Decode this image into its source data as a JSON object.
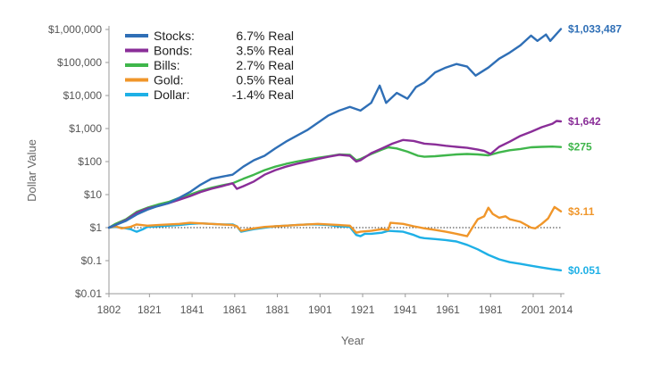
{
  "chart_data": {
    "type": "line",
    "title": "",
    "xlabel": "Year",
    "ylabel": "Dollar Value",
    "y_scale": "log",
    "ylim": [
      0.01,
      1000000
    ],
    "xlim": [
      1802,
      2014
    ],
    "grid": false,
    "reference_line": {
      "value": 1,
      "style": "dotted"
    },
    "legend_position": "top-left",
    "x_ticks": [
      1802,
      1821,
      1841,
      1861,
      1881,
      1901,
      1921,
      1941,
      1961,
      1981,
      2001,
      2014
    ],
    "y_ticks": [
      {
        "value": 1000000,
        "label": "$1,000,000"
      },
      {
        "value": 100000,
        "label": "$100,000"
      },
      {
        "value": 10000,
        "label": "$10,000"
      },
      {
        "value": 1000,
        "label": "$1,000"
      },
      {
        "value": 100,
        "label": "$100"
      },
      {
        "value": 10,
        "label": "$10"
      },
      {
        "value": 1,
        "label": "$1"
      },
      {
        "value": 0.1,
        "label": "$0.1"
      },
      {
        "value": 0.01,
        "label": "$0.01"
      }
    ],
    "series": [
      {
        "name": "Stocks:",
        "rate": "6.7% Real",
        "color": "#2f6fb6",
        "end_label": "$1,033,487",
        "points": [
          [
            1802,
            1
          ],
          [
            1805,
            1.2
          ],
          [
            1810,
            1.6
          ],
          [
            1815,
            2.5
          ],
          [
            1820,
            3.5
          ],
          [
            1825,
            4.5
          ],
          [
            1830,
            5.5
          ],
          [
            1835,
            8
          ],
          [
            1840,
            12
          ],
          [
            1845,
            20
          ],
          [
            1850,
            30
          ],
          [
            1855,
            35
          ],
          [
            1860,
            40
          ],
          [
            1865,
            70
          ],
          [
            1870,
            110
          ],
          [
            1875,
            150
          ],
          [
            1880,
            250
          ],
          [
            1885,
            400
          ],
          [
            1890,
            600
          ],
          [
            1895,
            900
          ],
          [
            1900,
            1500
          ],
          [
            1905,
            2500
          ],
          [
            1910,
            3500
          ],
          [
            1915,
            4500
          ],
          [
            1920,
            3500
          ],
          [
            1925,
            6000
          ],
          [
            1929,
            20000
          ],
          [
            1932,
            6000
          ],
          [
            1937,
            12000
          ],
          [
            1942,
            8000
          ],
          [
            1946,
            18000
          ],
          [
            1950,
            25000
          ],
          [
            1955,
            50000
          ],
          [
            1960,
            70000
          ],
          [
            1965,
            90000
          ],
          [
            1970,
            75000
          ],
          [
            1974,
            40000
          ],
          [
            1980,
            70000
          ],
          [
            1985,
            130000
          ],
          [
            1990,
            200000
          ],
          [
            1995,
            330000
          ],
          [
            2000,
            650000
          ],
          [
            2003,
            450000
          ],
          [
            2007,
            700000
          ],
          [
            2009,
            450000
          ],
          [
            2014,
            1033487
          ]
        ]
      },
      {
        "name": "Bonds:",
        "rate": "3.5% Real",
        "color": "#8a2e98",
        "end_label": "$1,642",
        "points": [
          [
            1802,
            1
          ],
          [
            1805,
            1.2
          ],
          [
            1810,
            1.7
          ],
          [
            1815,
            2.8
          ],
          [
            1820,
            3.8
          ],
          [
            1825,
            4.5
          ],
          [
            1830,
            5.5
          ],
          [
            1835,
            7
          ],
          [
            1840,
            9
          ],
          [
            1845,
            12
          ],
          [
            1850,
            15
          ],
          [
            1855,
            18
          ],
          [
            1860,
            22
          ],
          [
            1862,
            15
          ],
          [
            1865,
            18
          ],
          [
            1870,
            25
          ],
          [
            1875,
            40
          ],
          [
            1880,
            55
          ],
          [
            1885,
            70
          ],
          [
            1890,
            85
          ],
          [
            1895,
            100
          ],
          [
            1900,
            120
          ],
          [
            1905,
            140
          ],
          [
            1910,
            160
          ],
          [
            1915,
            150
          ],
          [
            1918,
            100
          ],
          [
            1920,
            110
          ],
          [
            1925,
            180
          ],
          [
            1930,
            250
          ],
          [
            1935,
            350
          ],
          [
            1940,
            450
          ],
          [
            1945,
            420
          ],
          [
            1950,
            350
          ],
          [
            1955,
            330
          ],
          [
            1960,
            300
          ],
          [
            1965,
            280
          ],
          [
            1970,
            260
          ],
          [
            1975,
            230
          ],
          [
            1978,
            210
          ],
          [
            1981,
            170
          ],
          [
            1985,
            280
          ],
          [
            1990,
            400
          ],
          [
            1995,
            600
          ],
          [
            2000,
            800
          ],
          [
            2005,
            1100
          ],
          [
            2010,
            1400
          ],
          [
            2012,
            1700
          ],
          [
            2014,
            1642
          ]
        ]
      },
      {
        "name": "Bills:",
        "rate": "2.7% Real",
        "color": "#3fb64b",
        "end_label": "$275",
        "points": [
          [
            1802,
            1
          ],
          [
            1805,
            1.3
          ],
          [
            1810,
            1.8
          ],
          [
            1815,
            3
          ],
          [
            1820,
            4
          ],
          [
            1825,
            5
          ],
          [
            1830,
            6
          ],
          [
            1835,
            8
          ],
          [
            1840,
            10
          ],
          [
            1845,
            13
          ],
          [
            1850,
            16
          ],
          [
            1855,
            19
          ],
          [
            1860,
            22
          ],
          [
            1865,
            30
          ],
          [
            1870,
            40
          ],
          [
            1875,
            55
          ],
          [
            1880,
            70
          ],
          [
            1885,
            85
          ],
          [
            1890,
            100
          ],
          [
            1895,
            115
          ],
          [
            1900,
            130
          ],
          [
            1905,
            145
          ],
          [
            1910,
            165
          ],
          [
            1915,
            160
          ],
          [
            1918,
            110
          ],
          [
            1920,
            120
          ],
          [
            1925,
            170
          ],
          [
            1930,
            230
          ],
          [
            1933,
            270
          ],
          [
            1937,
            250
          ],
          [
            1942,
            200
          ],
          [
            1947,
            150
          ],
          [
            1950,
            140
          ],
          [
            1955,
            145
          ],
          [
            1960,
            155
          ],
          [
            1965,
            165
          ],
          [
            1970,
            170
          ],
          [
            1975,
            165
          ],
          [
            1980,
            155
          ],
          [
            1985,
            190
          ],
          [
            1990,
            220
          ],
          [
            1995,
            240
          ],
          [
            2000,
            270
          ],
          [
            2005,
            280
          ],
          [
            2010,
            285
          ],
          [
            2014,
            275
          ]
        ]
      },
      {
        "name": "Gold:",
        "rate": "0.5% Real",
        "color": "#f0962a",
        "end_label": "$3.11",
        "points": [
          [
            1802,
            1
          ],
          [
            1805,
            1.1
          ],
          [
            1808,
            0.95
          ],
          [
            1812,
            1.05
          ],
          [
            1815,
            1.25
          ],
          [
            1820,
            1.15
          ],
          [
            1825,
            1.2
          ],
          [
            1830,
            1.25
          ],
          [
            1835,
            1.3
          ],
          [
            1840,
            1.4
          ],
          [
            1845,
            1.35
          ],
          [
            1850,
            1.3
          ],
          [
            1855,
            1.25
          ],
          [
            1860,
            1.2
          ],
          [
            1862,
            1.1
          ],
          [
            1864,
            0.8
          ],
          [
            1866,
            0.85
          ],
          [
            1870,
            0.95
          ],
          [
            1875,
            1.05
          ],
          [
            1880,
            1.1
          ],
          [
            1885,
            1.15
          ],
          [
            1890,
            1.2
          ],
          [
            1895,
            1.25
          ],
          [
            1900,
            1.3
          ],
          [
            1905,
            1.25
          ],
          [
            1910,
            1.2
          ],
          [
            1915,
            1.15
          ],
          [
            1918,
            0.7
          ],
          [
            1920,
            0.75
          ],
          [
            1925,
            0.8
          ],
          [
            1930,
            0.9
          ],
          [
            1933,
            0.85
          ],
          [
            1934,
            1.4
          ],
          [
            1940,
            1.3
          ],
          [
            1945,
            1.1
          ],
          [
            1950,
            0.95
          ],
          [
            1955,
            0.85
          ],
          [
            1960,
            0.75
          ],
          [
            1965,
            0.65
          ],
          [
            1970,
            0.55
          ],
          [
            1972,
            0.9
          ],
          [
            1975,
            1.8
          ],
          [
            1978,
            2.2
          ],
          [
            1980,
            4
          ],
          [
            1982,
            2.6
          ],
          [
            1985,
            2
          ],
          [
            1988,
            2.2
          ],
          [
            1990,
            1.8
          ],
          [
            1995,
            1.5
          ],
          [
            2000,
            1.0
          ],
          [
            2002,
            0.95
          ],
          [
            2005,
            1.3
          ],
          [
            2008,
            1.9
          ],
          [
            2011,
            4.2
          ],
          [
            2014,
            3.11
          ]
        ]
      },
      {
        "name": "Dollar:",
        "rate": "-1.4% Real",
        "color": "#1eb0e6",
        "end_label": "$0.051",
        "points": [
          [
            1802,
            1
          ],
          [
            1805,
            1.05
          ],
          [
            1810,
            0.95
          ],
          [
            1812,
            0.9
          ],
          [
            1815,
            0.75
          ],
          [
            1818,
            0.9
          ],
          [
            1820,
            1.05
          ],
          [
            1825,
            1.1
          ],
          [
            1830,
            1.15
          ],
          [
            1835,
            1.2
          ],
          [
            1840,
            1.3
          ],
          [
            1845,
            1.35
          ],
          [
            1850,
            1.3
          ],
          [
            1855,
            1.25
          ],
          [
            1860,
            1.25
          ],
          [
            1862,
            1.1
          ],
          [
            1864,
            0.75
          ],
          [
            1866,
            0.8
          ],
          [
            1870,
            0.9
          ],
          [
            1875,
            1.0
          ],
          [
            1880,
            1.1
          ],
          [
            1885,
            1.15
          ],
          [
            1890,
            1.2
          ],
          [
            1895,
            1.25
          ],
          [
            1900,
            1.25
          ],
          [
            1905,
            1.2
          ],
          [
            1910,
            1.1
          ],
          [
            1915,
            1.05
          ],
          [
            1918,
            0.6
          ],
          [
            1920,
            0.55
          ],
          [
            1922,
            0.65
          ],
          [
            1925,
            0.65
          ],
          [
            1930,
            0.7
          ],
          [
            1933,
            0.8
          ],
          [
            1940,
            0.75
          ],
          [
            1945,
            0.6
          ],
          [
            1948,
            0.5
          ],
          [
            1950,
            0.48
          ],
          [
            1955,
            0.45
          ],
          [
            1960,
            0.42
          ],
          [
            1965,
            0.38
          ],
          [
            1970,
            0.3
          ],
          [
            1975,
            0.22
          ],
          [
            1980,
            0.15
          ],
          [
            1985,
            0.11
          ],
          [
            1990,
            0.09
          ],
          [
            1995,
            0.08
          ],
          [
            2000,
            0.07
          ],
          [
            2005,
            0.062
          ],
          [
            2010,
            0.055
          ],
          [
            2014,
            0.051
          ]
        ]
      }
    ]
  }
}
